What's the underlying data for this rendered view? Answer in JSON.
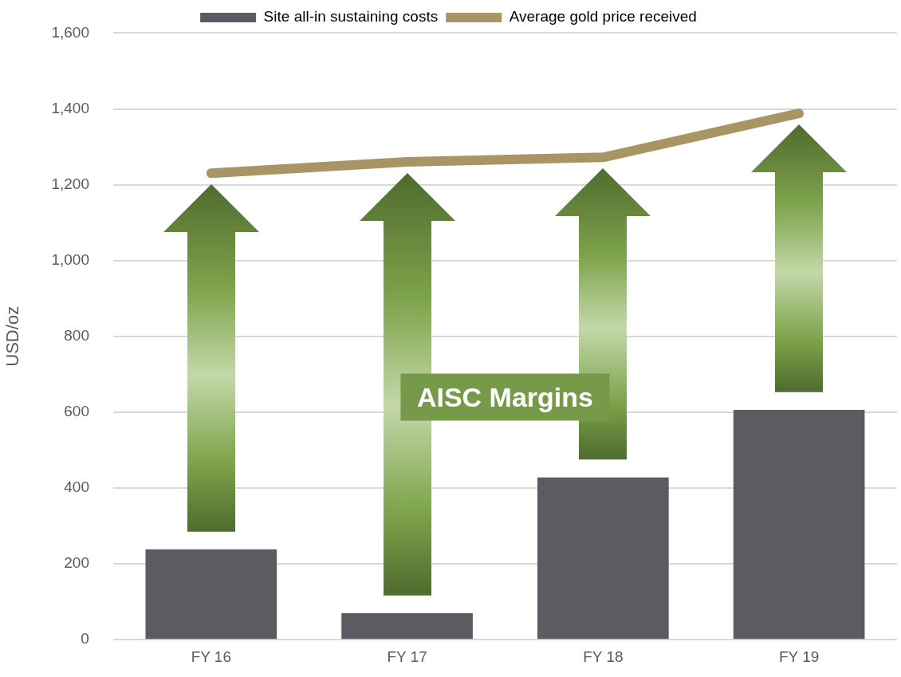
{
  "chart_data": {
    "type": "bar",
    "ylabel": "USD/oz",
    "categories": [
      "FY 16",
      "FY 17",
      "FY 18",
      "FY 19"
    ],
    "series": [
      {
        "name": "Site all-in sustaining costs",
        "color": "#5a5c62",
        "values": [
          238,
          70,
          428,
          606
        ]
      },
      {
        "name": "Average gold price received",
        "type": "line",
        "color": "#a89563",
        "values": [
          1230,
          1260,
          1272,
          1388
        ]
      }
    ],
    "ylim": [
      0,
      1600
    ],
    "yticks": [
      0,
      {
        "value": 200,
        "label": "200"
      },
      {
        "value": 400,
        "label": "400"
      },
      {
        "value": 600,
        "label": "600"
      },
      {
        "value": 800,
        "label": "800"
      },
      {
        "value": 1000,
        "label": "1,000"
      },
      {
        "value": 1200,
        "label": "1,200"
      },
      {
        "value": 1400,
        "label": "1,400"
      },
      {
        "value": 1600,
        "label": "1,600"
      }
    ],
    "grid": "y",
    "legend": "top",
    "marker": "none",
    "annotations": [
      "AISC Margins"
    ]
  }
}
